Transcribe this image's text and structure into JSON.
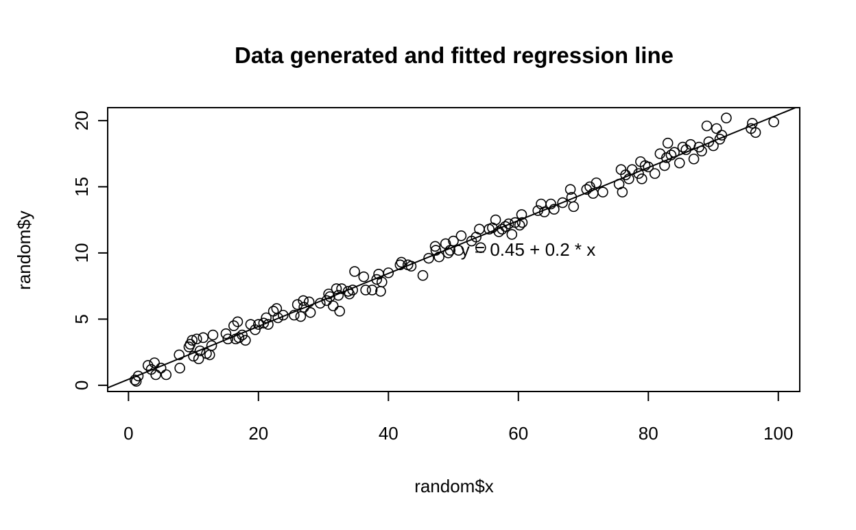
{
  "chart_data": {
    "type": "scatter",
    "title": "Data generated and fitted regression line",
    "x_label": "random$x",
    "y_label": "random$y",
    "annotation": "y = 0.45 + 0.2 * x",
    "regression": {
      "intercept": 0.45,
      "slope": 0.2
    },
    "color": "#000000",
    "xlim": [
      -3.2,
      103.3
    ],
    "ylim": [
      -0.47,
      20.98
    ],
    "xticks": [
      0,
      20,
      40,
      60,
      80,
      100
    ],
    "yticks": [
      0,
      5,
      10,
      15,
      20
    ],
    "x": [
      1,
      1.2,
      1.5,
      3,
      3.5,
      4,
      4.2,
      5,
      5.8,
      7.8,
      7.9,
      9.3,
      9.5,
      9.8,
      10,
      10.5,
      10.8,
      11,
      11.5,
      12,
      12.5,
      12.8,
      13,
      15,
      15.3,
      16.2,
      16.5,
      16.8,
      17,
      17.5,
      18,
      18.8,
      19.5,
      20,
      20.8,
      21.2,
      21.5,
      22.3,
      22.8,
      23,
      23.8,
      25.5,
      26,
      26.5,
      26.9,
      27,
      27.8,
      28,
      29.5,
      30.5,
      30.8,
      31,
      31.5,
      32,
      32.3,
      32.5,
      32.8,
      33.8,
      34,
      34.5,
      34.8,
      36.2,
      36.5,
      37.5,
      38.2,
      38.5,
      38.8,
      39,
      40,
      41.8,
      42,
      43,
      43.5,
      45.3,
      46.2,
      47.2,
      47.3,
      47.8,
      48.8,
      49.2,
      49.5,
      50,
      50.8,
      51.2,
      52.8,
      53.5,
      54,
      54.2,
      55.5,
      56,
      56.5,
      57,
      57.5,
      58,
      58.5,
      59,
      59.5,
      60.2,
      60.5,
      60.6,
      63,
      63.5,
      64,
      65,
      65.5,
      66.8,
      68,
      68.2,
      68.5,
      70.5,
      71,
      71.5,
      72,
      73,
      75.5,
      75.8,
      76,
      76.5,
      77,
      77.5,
      78.5,
      78.8,
      79,
      79.5,
      80,
      81,
      81.8,
      82.5,
      82.8,
      83,
      83.5,
      84,
      84.8,
      85.3,
      85.8,
      86.5,
      87,
      87.8,
      88.2,
      89,
      89.3,
      90,
      90.5,
      91,
      91.3,
      92,
      95.8,
      96,
      96.5,
      99.3
    ],
    "values": [
      0.4,
      0.3,
      0.7,
      1.5,
      1.2,
      1.7,
      0.8,
      1.3,
      0.8,
      2.3,
      1.3,
      2.9,
      3.1,
      3.4,
      2.2,
      3.5,
      2.0,
      2.6,
      3.6,
      2.4,
      2.3,
      3.0,
      3.8,
      3.9,
      3.5,
      4.5,
      3.5,
      4.8,
      3.6,
      3.8,
      3.4,
      4.6,
      4.2,
      4.6,
      4.7,
      5.1,
      4.6,
      5.6,
      5.8,
      5.1,
      5.3,
      5.3,
      6.1,
      5.2,
      6.4,
      5.9,
      6.3,
      5.5,
      6.2,
      6.4,
      6.9,
      6.7,
      6.0,
      7.3,
      6.8,
      5.6,
      7.3,
      7.1,
      6.9,
      7.2,
      8.6,
      8.2,
      7.2,
      7.2,
      8.0,
      8.4,
      7.1,
      7.8,
      8.5,
      9.1,
      9.3,
      9.1,
      9.0,
      8.3,
      9.6,
      10.5,
      10.2,
      9.7,
      10.7,
      10.0,
      10.2,
      10.9,
      10.2,
      11.3,
      10.9,
      11.2,
      11.8,
      10.4,
      11.8,
      11.9,
      12.5,
      11.6,
      11.8,
      12.0,
      12.2,
      11.4,
      12.3,
      12.1,
      12.9,
      12.3,
      13.2,
      13.7,
      13.1,
      13.7,
      13.3,
      13.8,
      14.8,
      14.2,
      13.5,
      14.8,
      15.0,
      14.5,
      15.3,
      14.6,
      15.2,
      16.3,
      14.6,
      15.9,
      15.6,
      16.3,
      16.0,
      16.9,
      15.6,
      16.6,
      16.5,
      16.0,
      17.5,
      16.6,
      17.2,
      18.3,
      17.4,
      17.6,
      16.8,
      18.0,
      17.8,
      18.2,
      17.1,
      18.0,
      17.7,
      19.6,
      18.4,
      18.1,
      19.4,
      18.6,
      18.9,
      20.2,
      19.4,
      19.8,
      19.1,
      19.9
    ]
  }
}
